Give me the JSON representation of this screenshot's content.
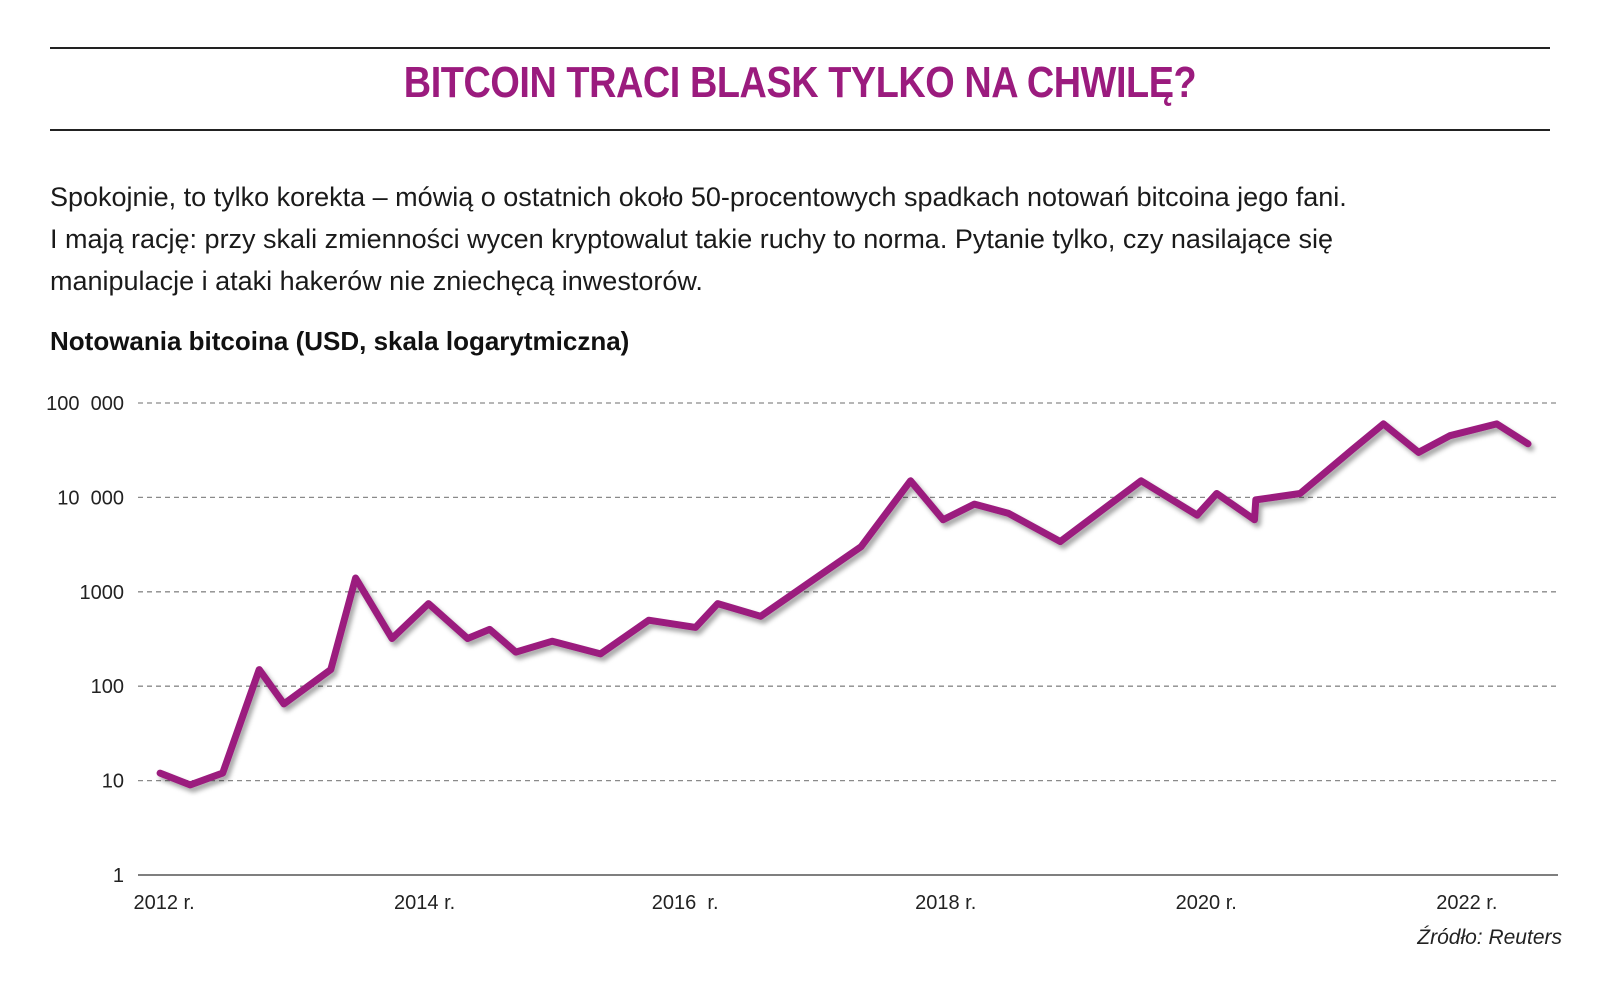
{
  "header": {
    "title": "BITCOIN TRACI BLASK TYLKO NA CHWILĘ?"
  },
  "lead": {
    "lines": [
      "Spokojnie, to tylko korekta – mówią o ostatnich około 50-procentowych spadkach notowań bitcoina jego fani.",
      "I mają rację: przy skali zmienności wycen kryptowalut takie ruchy to norma. Pytanie tylko, czy nasilające się",
      "manipulacje i ataki hakerów nie zniechęcą inwestorów."
    ]
  },
  "source": "Źródło: Reuters",
  "colors": {
    "accent": "#9b1b7e",
    "line": "#9b1b7e",
    "grid": "#8a8a8a"
  },
  "chart_data": {
    "type": "line",
    "title": "Notowania bitcoina (USD, skala logarytmiczna)",
    "xlabel": "",
    "ylabel": "",
    "yscale": "log",
    "ylim": [
      1,
      100000
    ],
    "xlim": [
      2011.8,
      2022.7
    ],
    "grid": true,
    "y_ticks": [
      {
        "value": 1,
        "label": "1"
      },
      {
        "value": 10,
        "label": "10"
      },
      {
        "value": 100,
        "label": "100"
      },
      {
        "value": 1000,
        "label": "1000"
      },
      {
        "value": 10000,
        "label": "10  000"
      },
      {
        "value": 100000,
        "label": "100  000"
      }
    ],
    "x_ticks": [
      {
        "value": 2012,
        "label": "2012 r."
      },
      {
        "value": 2014,
        "label": "2014 r."
      },
      {
        "value": 2016,
        "label": "2016  r."
      },
      {
        "value": 2018,
        "label": "2018 r."
      },
      {
        "value": 2020,
        "label": "2020 r."
      },
      {
        "value": 2022,
        "label": "2022 r."
      }
    ],
    "series": [
      {
        "x": [
          2011.97,
          2012.2,
          2012.45,
          2012.73,
          2012.92,
          2013.28,
          2013.47,
          2013.75,
          2014.03,
          2014.33,
          2014.5,
          2014.7,
          2014.98,
          2015.35,
          2015.72,
          2016.08,
          2016.25,
          2016.58,
          2016.97,
          2017.35,
          2017.73,
          2017.98,
          2018.22,
          2018.48,
          2018.88,
          2019.5,
          2019.93,
          2020.08,
          2020.37,
          2020.38,
          2020.72,
          2021.12,
          2021.36,
          2021.63,
          2021.87,
          2022.23,
          2022.47
        ],
        "y": [
          12,
          9,
          12,
          150,
          65,
          150,
          1400,
          320,
          750,
          320,
          400,
          230,
          300,
          220,
          500,
          420,
          750,
          550,
          1300,
          3000,
          15000,
          5800,
          8500,
          6800,
          3400,
          15000,
          6500,
          11000,
          5800,
          9400,
          11000,
          32000,
          60000,
          30000,
          45000,
          60000,
          37000
        ]
      }
    ]
  }
}
